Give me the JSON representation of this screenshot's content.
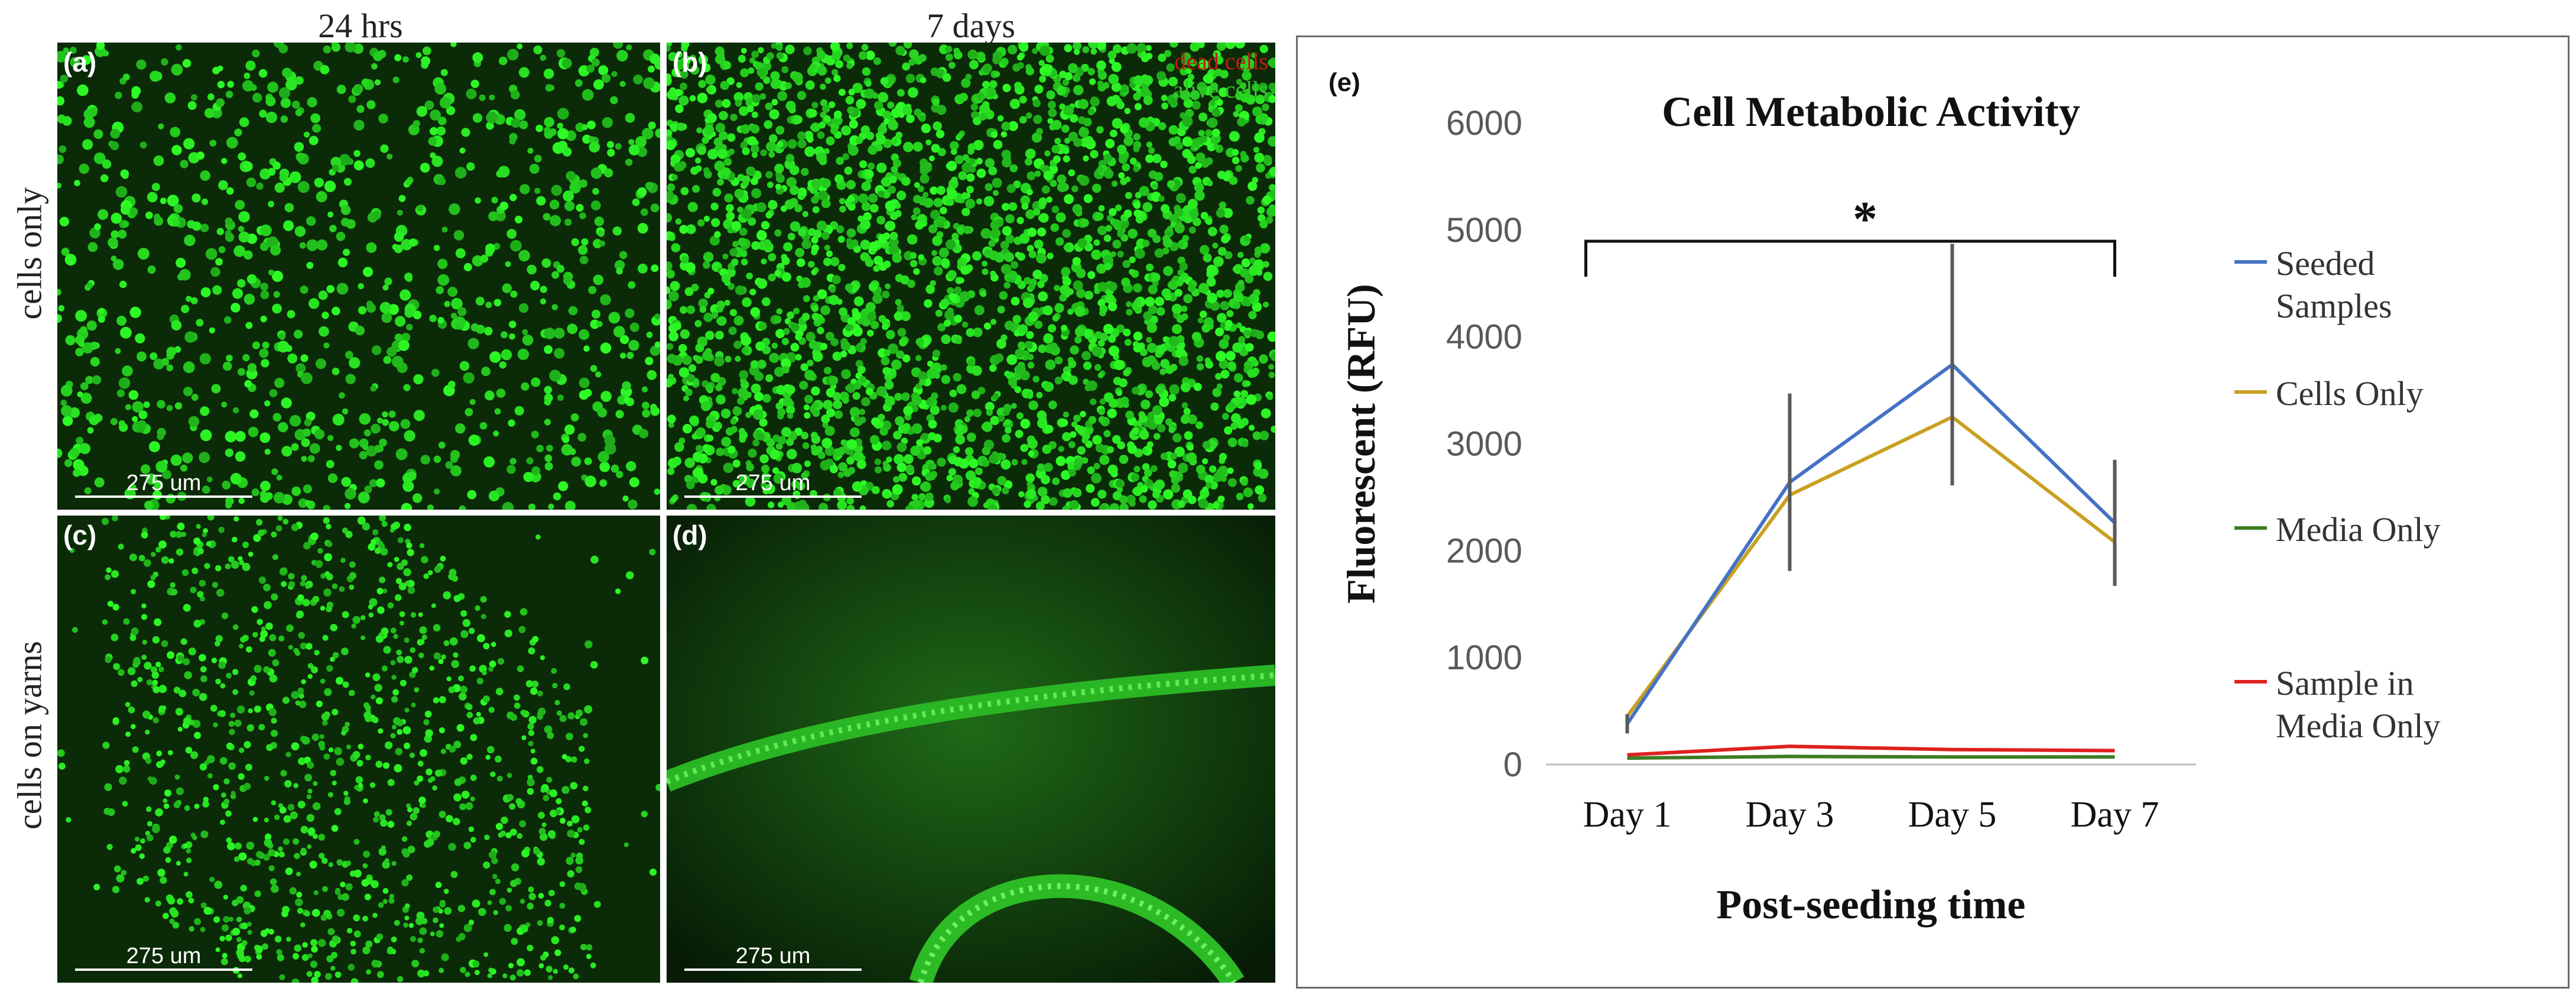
{
  "columns": [
    "24 hrs",
    "7 days"
  ],
  "rows": [
    "cells only",
    "cells on yarns"
  ],
  "panels": [
    {
      "letter": "(a)",
      "scale": "275 um"
    },
    {
      "letter": "(b)",
      "scale": "275 um",
      "legend": [
        "dead cells",
        "alive cells"
      ]
    },
    {
      "letter": "(c)",
      "scale": "275 um"
    },
    {
      "letter": "(d)",
      "scale": "275 um"
    }
  ],
  "colors": {
    "panel_bg": "#0b2a08",
    "cell_green": "#2ee82a",
    "dead_red": "#c21b14"
  },
  "chart_data": {
    "panel_letter": "(e)",
    "type": "line",
    "title": "Cell Metabolic Activity",
    "xlabel": "Post-seeding time",
    "ylabel": "Fluorescent (RFU)",
    "categories": [
      "Day 1",
      "Day 3",
      "Day 5",
      "Day 7"
    ],
    "ylim": [
      0,
      6000
    ],
    "yticks": [
      "0",
      "1000",
      "2000",
      "3000",
      "4000",
      "5000",
      "6000"
    ],
    "significance": "*",
    "series": [
      {
        "name": "Seeded Samples",
        "color": "#4472c4",
        "values": [
          380,
          2640,
          3740,
          2260
        ],
        "error": [
          90,
          830,
          1130,
          590
        ]
      },
      {
        "name": "Cells Only",
        "color": "#c9a021",
        "values": [
          450,
          2520,
          3250,
          2080
        ],
        "error": null
      },
      {
        "name": "Media Only",
        "color": "#3f7d25",
        "values": [
          60,
          75,
          70,
          70
        ],
        "error": null
      },
      {
        "name": "Sample in Media Only",
        "color": "#e02020",
        "values": [
          90,
          170,
          140,
          130
        ],
        "error": null
      }
    ],
    "legend_position": "right",
    "grid": false
  }
}
